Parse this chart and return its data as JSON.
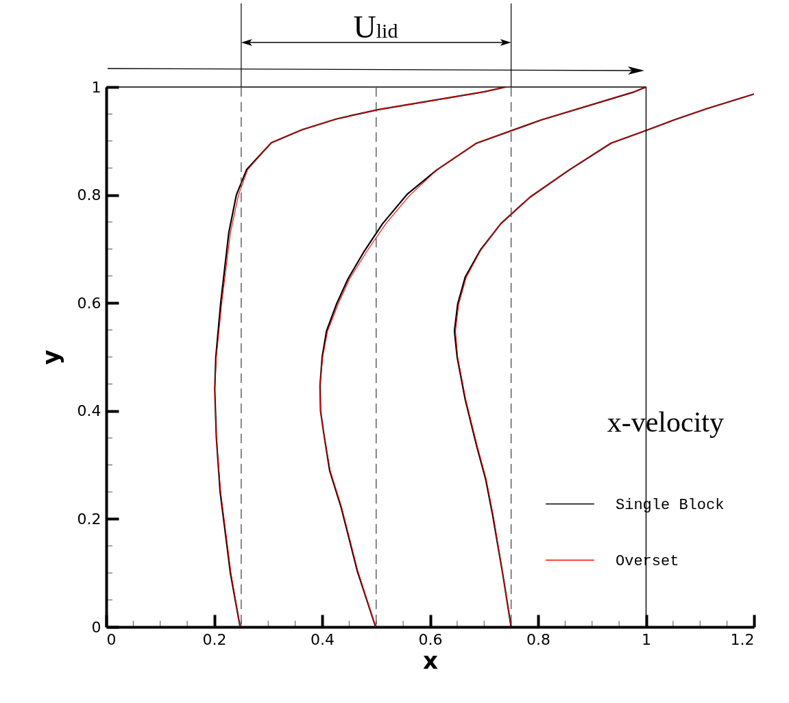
{
  "chart_data": {
    "type": "line",
    "xlabel": "x",
    "ylabel": "y",
    "legend_title": "x-velocity",
    "legend": "bottom right",
    "grid": false,
    "annotations": [
      "U$_{lid}$"
    ],
    "xlim": [
      0,
      1.2
    ],
    "ylim": [
      0,
      1
    ],
    "xticks": [
      0,
      {
        "value": 0.05,
        "label": null
      },
      {
        "value": 0.1,
        "label": null
      },
      {
        "value": 0.15,
        "label": null
      },
      0.2,
      {
        "value": 0.25,
        "label": null
      },
      {
        "value": 0.3,
        "label": null
      },
      {
        "value": 0.35,
        "label": null
      },
      0.4,
      {
        "value": 0.45,
        "label": null
      },
      {
        "value": 0.5,
        "label": null
      },
      {
        "value": 0.55,
        "label": null
      },
      0.6,
      {
        "value": 0.65,
        "label": null
      },
      {
        "value": 0.7,
        "label": null
      },
      {
        "value": 0.75,
        "label": null
      },
      0.8,
      {
        "value": 0.85,
        "label": null
      },
      {
        "value": 0.9,
        "label": null
      },
      {
        "value": 0.95,
        "label": null
      },
      1,
      {
        "value": 1.05,
        "label": null
      },
      {
        "value": 1.1,
        "label": null
      },
      {
        "value": 1.15,
        "label": null
      },
      1.2
    ],
    "yticks": [
      0,
      {
        "value": 0.05,
        "label": null
      },
      {
        "value": 0.1,
        "label": null
      },
      {
        "value": 0.15,
        "label": null
      },
      0.2,
      {
        "value": 0.25,
        "label": null
      },
      {
        "value": 0.3,
        "label": null
      },
      {
        "value": 0.35,
        "label": null
      },
      0.4,
      {
        "value": 0.45,
        "label": null
      },
      {
        "value": 0.5,
        "label": null
      },
      {
        "value": 0.55,
        "label": null
      },
      0.6,
      {
        "value": 0.65,
        "label": null
      },
      {
        "value": 0.7,
        "label": null
      },
      {
        "value": 0.75,
        "label": null
      },
      0.8,
      {
        "value": 0.85,
        "label": null
      },
      {
        "value": 0.9,
        "label": null
      },
      {
        "value": 0.95,
        "label": null
      },
      1
    ],
    "ref_lines": [
      {
        "axis": "x",
        "value": 0.25,
        "color": "#555555",
        "line_style": "dashed"
      },
      {
        "axis": "x",
        "value": 0.5,
        "color": "#555555",
        "line_style": "dashed"
      },
      {
        "axis": "x",
        "value": 0.75,
        "color": "#555555",
        "line_style": "dashed"
      },
      {
        "axis": "x",
        "value": 1,
        "color": "#000000",
        "line_style": "solid"
      }
    ],
    "series": [
      {
        "color": "#000000",
        "x": [
          0,
          1
        ],
        "values": [
          1,
          1
        ]
      },
      {
        "name": "Single Block",
        "color": "#000000",
        "x": [
          0.248,
          0.23,
          0.211,
          0.204,
          0.201,
          0.203,
          0.212,
          0.227,
          0.241,
          0.26,
          0.306,
          0.363,
          0.427,
          0.503,
          0.699,
          0.74,
          null,
          0.499,
          0.465,
          0.435,
          0.414,
          0.403,
          0.397,
          0.396,
          0.4,
          0.408,
          0.427,
          0.448,
          0.478,
          0.512,
          0.558,
          0.613,
          0.686,
          0.806,
          0.978,
          1.0,
          null,
          0.75,
          0.735,
          0.716,
          0.703,
          0.686,
          0.665,
          0.65,
          0.645,
          0.651,
          0.665,
          0.693,
          0.731,
          0.785,
          0.857,
          0.935,
          1.004,
          1.052,
          1.113,
          1.2
        ],
        "values": [
          0,
          0.1,
          0.25,
          0.35,
          0.44,
          0.5,
          0.6,
          0.73,
          0.8,
          0.847,
          0.897,
          0.921,
          0.941,
          0.958,
          0.991,
          1.0,
          null,
          0,
          0.104,
          0.222,
          0.289,
          0.358,
          0.4,
          0.447,
          0.5,
          0.548,
          0.599,
          0.645,
          0.696,
          0.747,
          0.802,
          0.847,
          0.896,
          0.939,
          0.991,
          1.0,
          null,
          0,
          0.095,
          0.206,
          0.273,
          0.336,
          0.421,
          0.5,
          0.548,
          0.598,
          0.648,
          0.698,
          0.747,
          0.796,
          0.846,
          0.896,
          0.921,
          0.939,
          0.96,
          0.987
        ]
      },
      {
        "name": "Overset",
        "color": "#ff0000",
        "x": [
          0.248,
          0.231,
          0.212,
          0.204,
          0.201,
          0.204,
          0.214,
          0.23,
          0.245,
          0.262,
          0.306,
          0.363,
          0.427,
          0.503,
          0.699,
          0.74,
          null,
          0.499,
          0.466,
          0.436,
          0.415,
          0.403,
          0.397,
          0.396,
          0.401,
          0.41,
          0.43,
          0.451,
          0.483,
          0.518,
          0.56,
          0.613,
          0.686,
          0.806,
          0.978,
          1.0,
          null,
          0.75,
          0.735,
          0.717,
          0.704,
          0.687,
          0.666,
          0.651,
          0.647,
          0.653,
          0.667,
          0.694,
          0.731,
          0.785,
          0.857,
          0.935,
          1.004,
          1.052,
          1.113,
          1.2
        ],
        "values": [
          0,
          0.1,
          0.25,
          0.35,
          0.44,
          0.5,
          0.6,
          0.73,
          0.8,
          0.847,
          0.897,
          0.921,
          0.941,
          0.958,
          0.991,
          1.0,
          null,
          0,
          0.104,
          0.222,
          0.289,
          0.358,
          0.4,
          0.447,
          0.5,
          0.548,
          0.599,
          0.645,
          0.696,
          0.747,
          0.797,
          0.847,
          0.896,
          0.939,
          0.991,
          1.0,
          null,
          0,
          0.095,
          0.206,
          0.273,
          0.336,
          0.421,
          0.5,
          0.548,
          0.598,
          0.648,
          0.698,
          0.747,
          0.796,
          0.846,
          0.896,
          0.921,
          0.939,
          0.96,
          0.987
        ]
      }
    ]
  }
}
